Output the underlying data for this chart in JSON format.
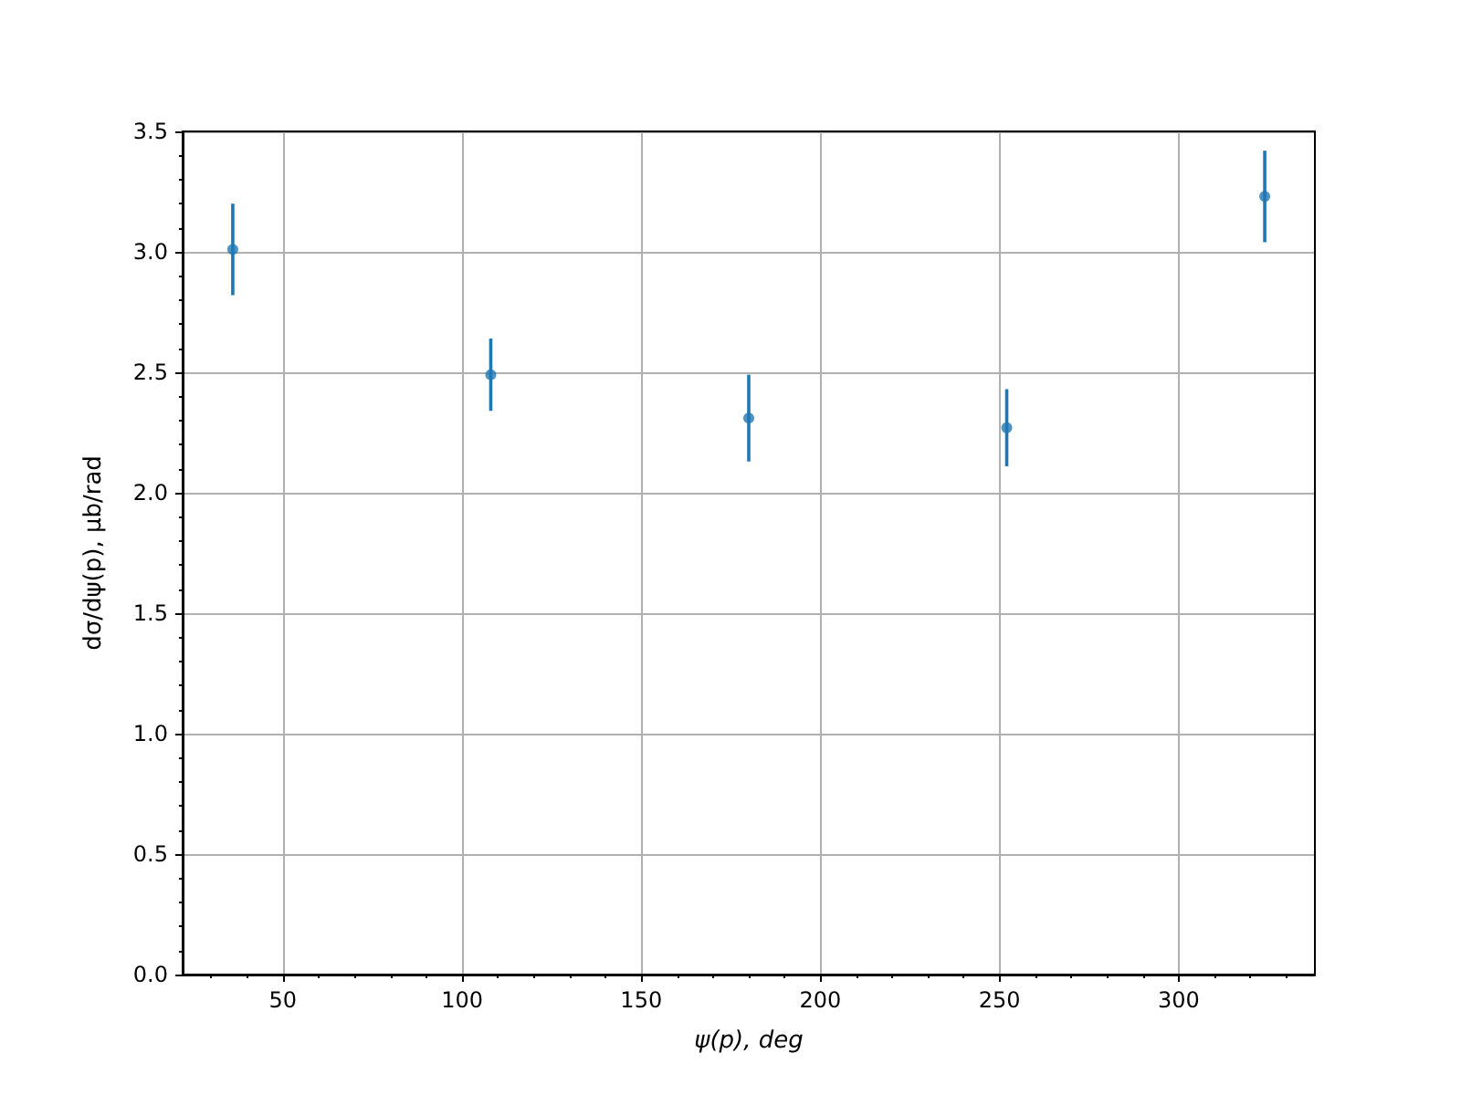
{
  "chart_data": {
    "type": "scatter",
    "xlabel": "ψ(p), deg",
    "ylabel": "dσ/dψ(p), μb/rad",
    "x": [
      36,
      108,
      180,
      252,
      324
    ],
    "series": [
      {
        "color": "#1f77b4",
        "values": [
          3.01,
          2.49,
          2.31,
          2.27,
          3.23
        ],
        "errors": [
          0.19,
          0.15,
          0.18,
          0.16,
          0.19
        ]
      }
    ],
    "xlim": [
      22,
      338
    ],
    "xticks": [
      50,
      100,
      150,
      200,
      250,
      300
    ],
    "ylim": [
      0,
      3.5
    ],
    "yticks": [
      {
        "value": 0,
        "label": "0.0"
      },
      0.5,
      {
        "value": 1,
        "label": "1.0"
      },
      1.5,
      {
        "value": 2,
        "label": "2.0"
      },
      2.5,
      {
        "value": 3,
        "label": "3.0"
      },
      3.5
    ],
    "grid": true,
    "marker": "circle"
  }
}
